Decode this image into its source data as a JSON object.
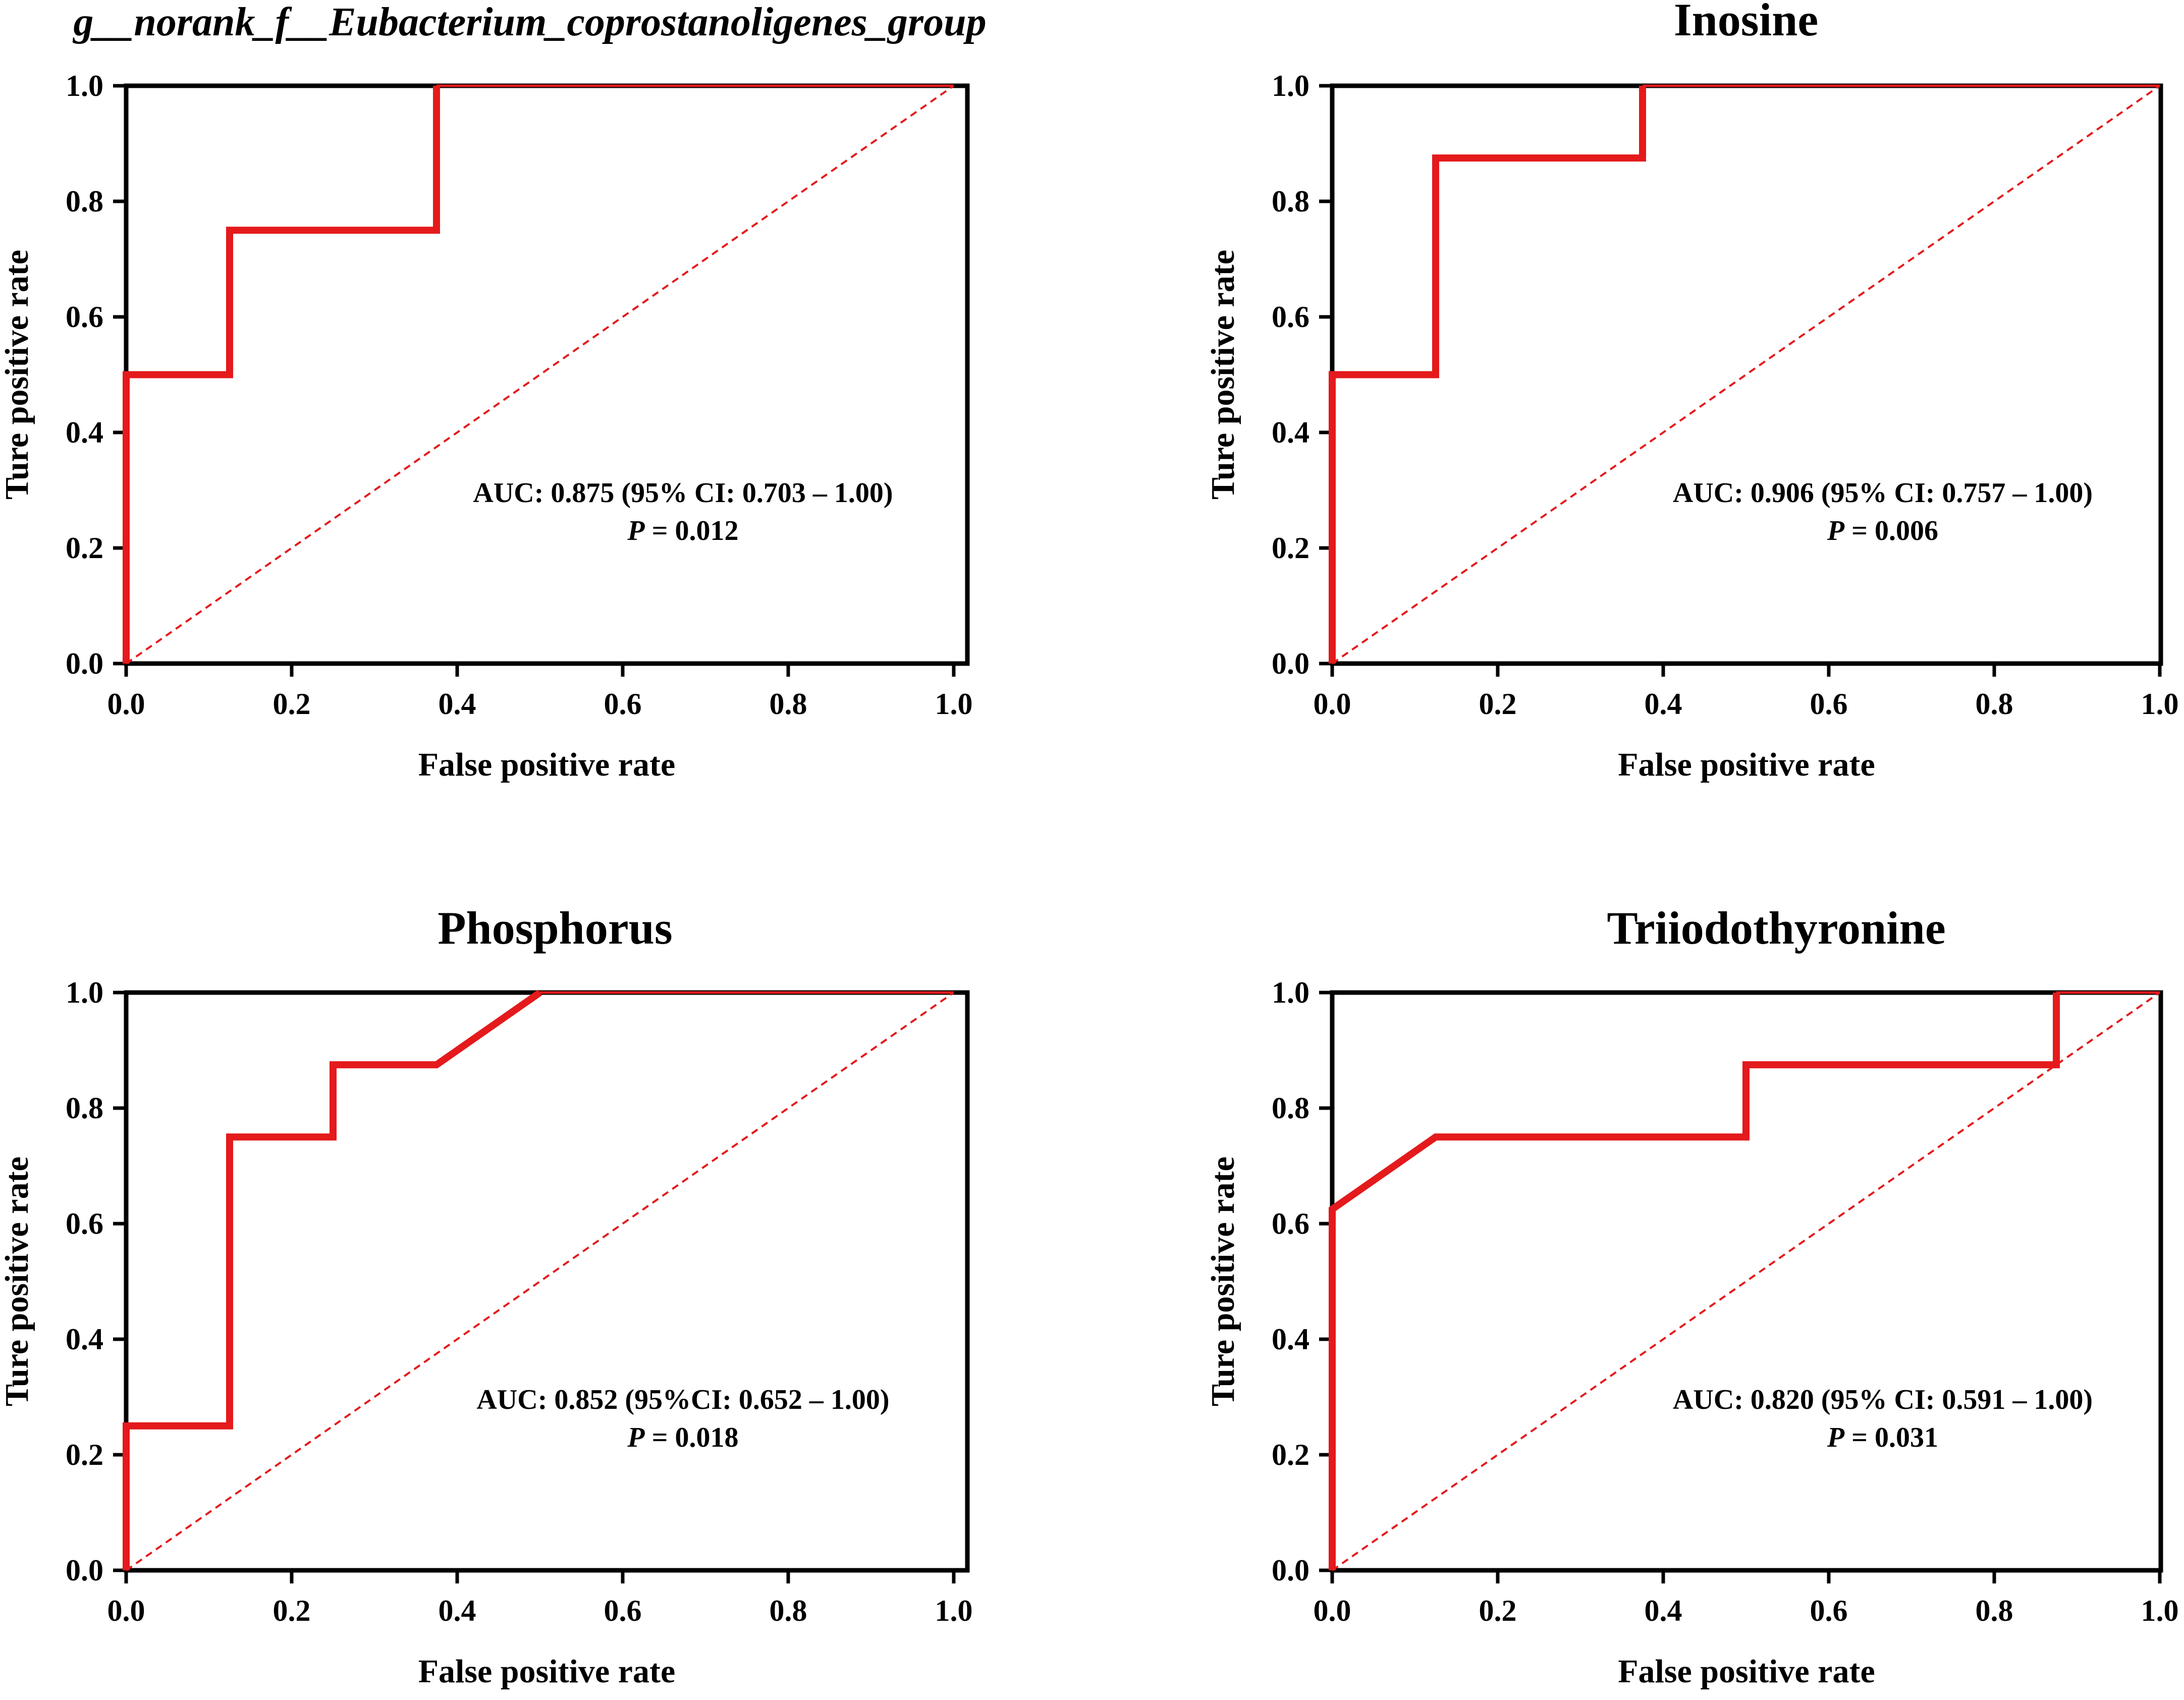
{
  "chart_data": [
    {
      "type": "line",
      "title": "g__norank_f__Eubacterium_coprostanoligenes_group",
      "title_italic": true,
      "xlabel": "False positive rate",
      "ylabel": "Ture positive rate",
      "xlim": [
        0,
        1
      ],
      "ylim": [
        0,
        1
      ],
      "xticks": [
        "0.0",
        "0.2",
        "0.4",
        "0.6",
        "0.8",
        "1.0"
      ],
      "yticks": [
        "0.0",
        "0.2",
        "0.4",
        "0.6",
        "0.8",
        "1.0"
      ],
      "series": [
        {
          "name": "ROC",
          "x": [
            0,
            0,
            0.125,
            0.125,
            0.375,
            0.375,
            1
          ],
          "y": [
            0,
            0.5,
            0.5,
            0.75,
            0.75,
            1,
            1
          ]
        },
        {
          "name": "Reference",
          "x": [
            0,
            1
          ],
          "y": [
            0,
            1
          ]
        }
      ],
      "annotation": {
        "auc_text": "AUC: 0.875 (95% CI: 0.703 – 1.00)",
        "p_label": "P",
        "p_value": " = 0.012"
      }
    },
    {
      "type": "line",
      "title": "Inosine",
      "title_italic": false,
      "xlabel": "False positive rate",
      "ylabel": "Ture positive rate",
      "xlim": [
        0,
        1
      ],
      "ylim": [
        0,
        1
      ],
      "xticks": [
        "0.0",
        "0.2",
        "0.4",
        "0.6",
        "0.8",
        "1.0"
      ],
      "yticks": [
        "0.0",
        "0.2",
        "0.4",
        "0.6",
        "0.8",
        "1.0"
      ],
      "series": [
        {
          "name": "ROC",
          "x": [
            0,
            0,
            0.125,
            0.125,
            0.375,
            0.375,
            1
          ],
          "y": [
            0,
            0.5,
            0.5,
            0.875,
            0.875,
            1,
            1
          ]
        },
        {
          "name": "Reference",
          "x": [
            0,
            1
          ],
          "y": [
            0,
            1
          ]
        }
      ],
      "annotation": {
        "auc_text": "AUC: 0.906 (95% CI: 0.757 – 1.00)",
        "p_label": "P",
        "p_value": " = 0.006"
      }
    },
    {
      "type": "line",
      "title": "Phosphorus",
      "title_italic": false,
      "xlabel": "False positive rate",
      "ylabel": "Ture positive rate",
      "xlim": [
        0,
        1
      ],
      "ylim": [
        0,
        1
      ],
      "xticks": [
        "0.0",
        "0.2",
        "0.4",
        "0.6",
        "0.8",
        "1.0"
      ],
      "yticks": [
        "0.0",
        "0.2",
        "0.4",
        "0.6",
        "0.8",
        "1.0"
      ],
      "series": [
        {
          "name": "ROC",
          "x": [
            0,
            0,
            0.125,
            0.125,
            0.25,
            0.25,
            0.375,
            0.5,
            1
          ],
          "y": [
            0,
            0.25,
            0.25,
            0.75,
            0.75,
            0.875,
            0.875,
            1,
            1
          ]
        },
        {
          "name": "Reference",
          "x": [
            0,
            1
          ],
          "y": [
            0,
            1
          ]
        }
      ],
      "annotation": {
        "auc_text": "AUC: 0.852 (95%CI: 0.652 – 1.00)",
        "p_label": "P",
        "p_value": " = 0.018"
      }
    },
    {
      "type": "line",
      "title": "Triiodothyronine",
      "title_italic": false,
      "xlabel": "False positive rate",
      "ylabel": "Ture positive rate",
      "xlim": [
        0,
        1
      ],
      "ylim": [
        0,
        1
      ],
      "xticks": [
        "0.0",
        "0.2",
        "0.4",
        "0.6",
        "0.8",
        "1.0"
      ],
      "yticks": [
        "0.0",
        "0.2",
        "0.4",
        "0.6",
        "0.8",
        "1.0"
      ],
      "series": [
        {
          "name": "ROC",
          "x": [
            0,
            0,
            0.125,
            0.5,
            0.5,
            0.875,
            0.875,
            1
          ],
          "y": [
            0,
            0.625,
            0.75,
            0.75,
            0.875,
            0.875,
            1,
            1
          ]
        },
        {
          "name": "Reference",
          "x": [
            0,
            1
          ],
          "y": [
            0,
            1
          ]
        }
      ],
      "annotation": {
        "auc_text": "AUC: 0.820 (95% CI: 0.591 – 1.00)",
        "p_label": "P",
        "p_value": " = 0.031"
      }
    }
  ],
  "colors": {
    "roc": "#e41a1c",
    "reference": "#e41a1c",
    "axis": "#000000"
  }
}
